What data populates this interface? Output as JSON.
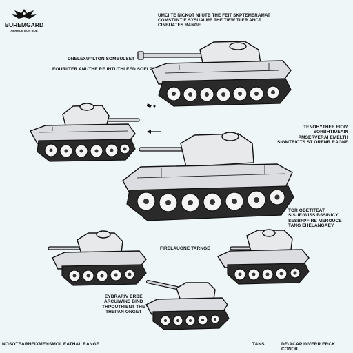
{
  "emblem": {
    "title": "BUREMGARD",
    "subtitle": "ABRMOE BOR BOE",
    "icon": "eagle-emblem-icon"
  },
  "captions": {
    "top_center": "UMCI TE NICKOT NIIUTB THE FEIT SKPTEMERAMAT\nCOMSTIINT E SYSUALME THE TIEW TIIER ANCT\nCINBUATES RANGE",
    "upper_left_title": "DNELEXUPLTON SOMBULSET",
    "upper_left_sub": "EOURIITER ANUTHE RE INTUTHLEED SOELPLDE",
    "right_mid": "TENOHYTHEE EIOIV\nSORBHTIUEAIN\nPMSERVERAI EMELTH\nSIGMTRICTS ST ORENR RAGNE",
    "right_lower": "TOR OBETITEAT\nSISUE-WISS BSSINICY\nSESBFPFIRE MEROUCE\nTANG EHELANGAEY",
    "center_lower": "FIRELAUGNE TARNGE",
    "lower_left": "EYBRARIV ERBE\nARCUIWINS BIND\nTHPOUTHIENT THE\nTHEPAN ONGET",
    "footer_left": "NOSOTEARNEIXMENSMOL EATHAL RANGE",
    "footer_mid": "TANS",
    "footer_right": "DE-ACAP INVERR ERCK CONOIL"
  },
  "icons": [
    "eagle-emblem-icon",
    "direction-arrow-icon",
    "tank-illustration"
  ]
}
